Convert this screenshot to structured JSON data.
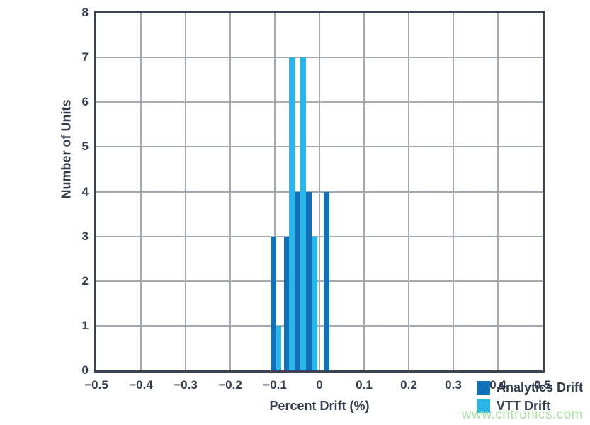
{
  "chart_data": {
    "type": "bar",
    "subtype": "histogram",
    "title": "",
    "xlabel": "Percent Drift (%)",
    "ylabel": "Number of Units",
    "xlim": [
      -0.5,
      0.5
    ],
    "ylim": [
      0,
      8
    ],
    "grid": true,
    "legend_position": "bottom-right",
    "x_tick_values": [
      -0.5,
      -0.4,
      -0.3,
      -0.2,
      -0.1,
      0,
      0.1,
      0.2,
      0.3,
      0.4,
      0.5
    ],
    "x_tick_labels": [
      "−0.5",
      "−0.4",
      "−0.3",
      "−0.2",
      "−0.1",
      "0",
      "0.1",
      "0.2",
      "0.3",
      "0.4",
      "0.5"
    ],
    "y_tick_values": [
      0,
      1,
      2,
      3,
      4,
      5,
      6,
      7,
      8
    ],
    "y_tick_labels": [
      "0",
      "1",
      "2",
      "3",
      "4",
      "5",
      "6",
      "7",
      "8"
    ],
    "bin_width": 0.0125,
    "series": [
      {
        "name": "Analytics Drift",
        "color": "#1170b8",
        "bins": [
          {
            "x0": -0.11,
            "x1": -0.0975,
            "count": 3
          },
          {
            "x0": -0.08,
            "x1": -0.0675,
            "count": 3
          },
          {
            "x0": -0.055,
            "x1": -0.0425,
            "count": 4
          },
          {
            "x0": -0.03,
            "x1": -0.0175,
            "count": 4
          },
          {
            "x0": 0.01,
            "x1": 0.0225,
            "count": 4
          }
        ]
      },
      {
        "name": "VTT Drift",
        "color": "#2ab5e8",
        "bins": [
          {
            "x0": -0.0975,
            "x1": -0.085,
            "count": 1
          },
          {
            "x0": -0.0675,
            "x1": -0.055,
            "count": 7
          },
          {
            "x0": -0.0425,
            "x1": -0.03,
            "count": 7
          },
          {
            "x0": -0.0175,
            "x1": -0.005,
            "count": 3
          }
        ]
      }
    ]
  },
  "legend": {
    "items": [
      {
        "label": "Analytics Drift",
        "color": "#1170b8"
      },
      {
        "label": "VTT Drift",
        "color": "#2ab5e8"
      }
    ]
  },
  "watermark": {
    "text": "www.cntronics.com",
    "color": "#a9e3a2"
  },
  "colors": {
    "frame": "#3a4254",
    "grid": "#a5a9b0",
    "text": "#333c4e",
    "background": "#ffffff"
  }
}
